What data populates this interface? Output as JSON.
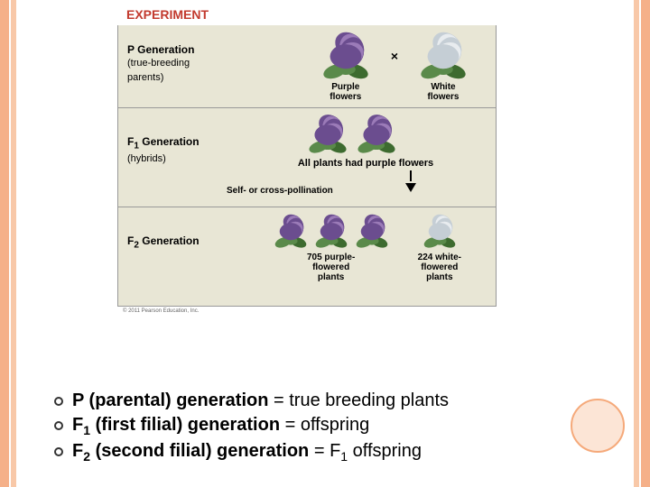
{
  "theme": {
    "accent_color": "#f5b089",
    "accent_color_inner": "#f8c8a8",
    "circle_fill": "#fce5d6",
    "circle_border": "#f5a97a",
    "experiment_color": "#c23a2e",
    "panel_bg": "#e8e6d5"
  },
  "experiment_label": "EXPERIMENT",
  "p_generation": {
    "title": "P Generation",
    "subtitle": "(true-breeding\nparents)",
    "purple_label": "Purple\nflowers",
    "white_label": "White\nflowers",
    "cross_symbol": "×"
  },
  "f1_generation": {
    "title": "F₁ Generation",
    "subtitle": "(hybrids)",
    "result_text": "All plants had purple flowers",
    "pollination_text": "Self- or cross-pollination"
  },
  "f2_generation": {
    "title": "F₂ Generation",
    "purple_count": "705 purple-\nflowered\nplants",
    "white_count": "224 white-\nflowered\nplants"
  },
  "copyright": "© 2011 Pearson Education, Inc.",
  "flower_colors": {
    "purple_dark": "#6b4d8f",
    "purple_light": "#9b7bb8",
    "white_base": "#e8ecef",
    "white_shadow": "#c5ced5",
    "leaf_green": "#5a8a4a",
    "leaf_dark": "#3d6b2f"
  },
  "bullets": [
    {
      "bold": "P (parental) generation",
      "rest": " = true breeding plants"
    },
    {
      "bold": "F₁ (first filial) generation",
      "rest": " = offspring"
    },
    {
      "bold": "F₂ (second filial) generation",
      "rest": " = F₁ offspring"
    }
  ]
}
